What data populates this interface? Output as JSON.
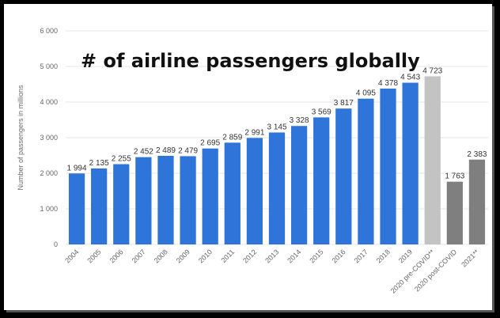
{
  "chart_data": {
    "type": "bar",
    "title": "# of airline passengers globally",
    "ylabel": "Number of passengers in millions",
    "xlabel": "",
    "ylim": [
      0,
      6000
    ],
    "yticks": [
      "0",
      "1 000",
      "2 000",
      "3 000",
      "4 000",
      "5 000",
      "6 000"
    ],
    "ytick_values": [
      0,
      1000,
      2000,
      3000,
      4000,
      5000,
      6000
    ],
    "grid": true,
    "categories": [
      "2004",
      "2005",
      "2006",
      "2007",
      "2008",
      "2009",
      "2010",
      "2011",
      "2012",
      "2013",
      "2014",
      "2015",
      "2016",
      "2017",
      "2018",
      "2019",
      "2020 pre-COVID**",
      "2020 post-COVID",
      "2021**"
    ],
    "values": [
      1994,
      2135,
      2255,
      2452,
      2489,
      2479,
      2695,
      2859,
      2991,
      3145,
      3328,
      3569,
      3817,
      4095,
      4378,
      4543,
      4723,
      1763,
      2383
    ],
    "value_labels": [
      "1 994",
      "2 135",
      "2 255",
      "2 452",
      "2 489",
      "2 479",
      "2 695",
      "2 859",
      "2 991",
      "3 145",
      "3 328",
      "3 569",
      "3 817",
      "4 095",
      "4 378",
      "4 543",
      "4 723",
      "1 763",
      "2 383"
    ],
    "bar_colors": [
      "#2e74d9",
      "#2e74d9",
      "#2e74d9",
      "#2e74d9",
      "#2e74d9",
      "#2e74d9",
      "#2e74d9",
      "#2e74d9",
      "#2e74d9",
      "#2e74d9",
      "#2e74d9",
      "#2e74d9",
      "#2e74d9",
      "#2e74d9",
      "#2e74d9",
      "#2e74d9",
      "#c3c3c3",
      "#7f7f7f",
      "#7f7f7f"
    ]
  }
}
